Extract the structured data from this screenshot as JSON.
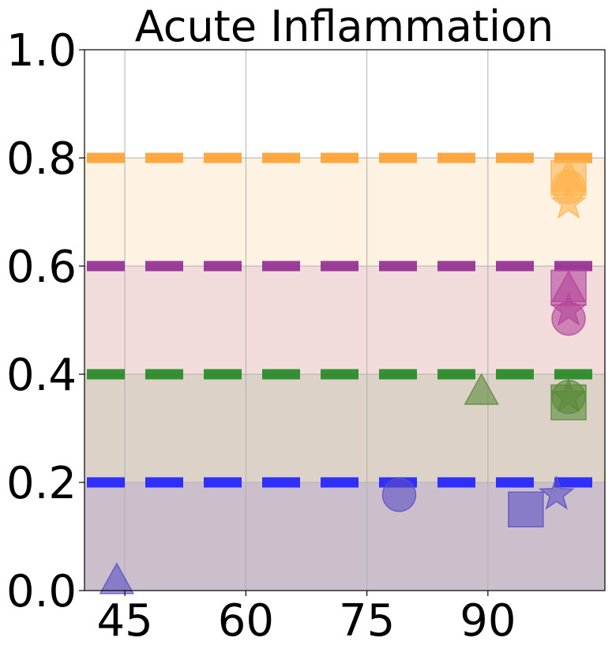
{
  "chart_data": {
    "type": "scatter",
    "title": "Acute Inflammation",
    "xlabel": "",
    "ylabel": "",
    "xlim": [
      40,
      104.5
    ],
    "ylim": [
      0.0,
      1.0
    ],
    "xticks": [
      "45",
      "60",
      "75",
      "90"
    ],
    "xtick_values": [
      45,
      60,
      75,
      90
    ],
    "yticks": [
      "0.0",
      "0.2",
      "0.4",
      "0.6",
      "0.8",
      "1.0"
    ],
    "ytick_values": [
      0.0,
      0.2,
      0.4,
      0.6,
      0.8,
      1.0
    ],
    "grid": true,
    "bands": [
      {
        "from": 0.0,
        "to": 0.2,
        "color": "#cbbfcc"
      },
      {
        "from": 0.2,
        "to": 0.4,
        "color": "#dcd2c7"
      },
      {
        "from": 0.4,
        "to": 0.6,
        "color": "#f2dbdb"
      },
      {
        "from": 0.6,
        "to": 0.8,
        "color": "#fef2e3"
      }
    ],
    "reference_lines": [
      {
        "y": 0.2,
        "color": "#1f1fff"
      },
      {
        "y": 0.4,
        "color": "#228822"
      },
      {
        "y": 0.6,
        "color": "#932b93"
      },
      {
        "y": 0.8,
        "color": "#ffa030"
      }
    ],
    "series": [
      {
        "color": "#5b4fc4",
        "points": [
          {
            "x": 44.0,
            "y": 0.015,
            "marker": "triangle"
          },
          {
            "x": 79.0,
            "y": 0.177,
            "marker": "circle"
          },
          {
            "x": 94.7,
            "y": 0.15,
            "marker": "square"
          },
          {
            "x": 98.5,
            "y": 0.178,
            "marker": "star"
          }
        ]
      },
      {
        "color": "#5a8a3a",
        "points": [
          {
            "x": 89.2,
            "y": 0.365,
            "marker": "triangle"
          },
          {
            "x": 100.0,
            "y": 0.358,
            "marker": "circle"
          },
          {
            "x": 100.0,
            "y": 0.348,
            "marker": "square"
          },
          {
            "x": 100.0,
            "y": 0.358,
            "marker": "star"
          }
        ]
      },
      {
        "color": "#b2469a",
        "points": [
          {
            "x": 100.0,
            "y": 0.555,
            "marker": "triangle"
          },
          {
            "x": 100.0,
            "y": 0.503,
            "marker": "circle"
          },
          {
            "x": 100.0,
            "y": 0.56,
            "marker": "square"
          },
          {
            "x": 100.0,
            "y": 0.518,
            "marker": "star"
          }
        ]
      },
      {
        "color": "#ffb24d",
        "points": [
          {
            "x": 100.0,
            "y": 0.76,
            "marker": "triangle"
          },
          {
            "x": 100.0,
            "y": 0.746,
            "marker": "circle"
          },
          {
            "x": 100.0,
            "y": 0.763,
            "marker": "square"
          },
          {
            "x": 100.0,
            "y": 0.716,
            "marker": "star"
          }
        ]
      }
    ]
  }
}
